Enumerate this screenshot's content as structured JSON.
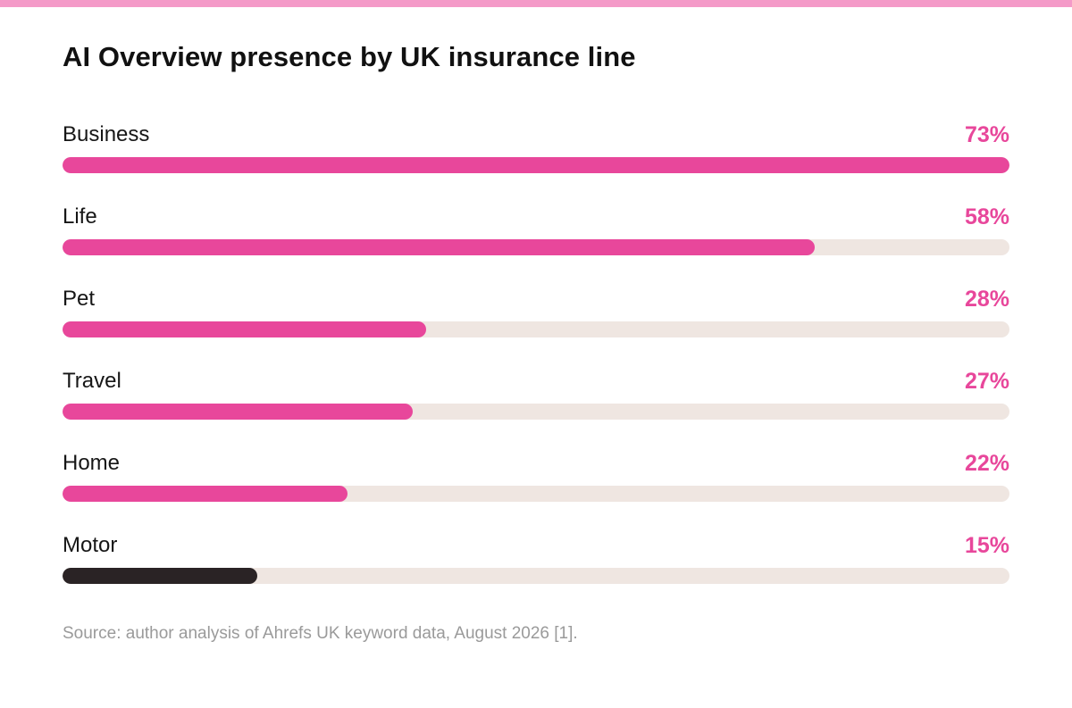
{
  "colors": {
    "top_stripe": "#f49ac8",
    "accent": "#e8479b",
    "highlight_bar": "#2a2325",
    "track": "#efe6e1",
    "title_text": "#111111",
    "label_text": "#161616",
    "source_text": "#9a9a9a"
  },
  "chart_data": {
    "type": "bar",
    "orientation": "horizontal",
    "title": "AI Overview presence by UK insurance line",
    "categories": [
      "Business",
      "Life",
      "Pet",
      "Travel",
      "Home",
      "Motor"
    ],
    "values": [
      73,
      58,
      28,
      27,
      22,
      15
    ],
    "value_labels": [
      "73%",
      "58%",
      "28%",
      "27%",
      "22%",
      "15%"
    ],
    "scale_max": 73,
    "unit": "%",
    "bar_colors": [
      "#e8479b",
      "#e8479b",
      "#e8479b",
      "#e8479b",
      "#e8479b",
      "#2a2325"
    ],
    "value_label_colors": [
      "#e8479b",
      "#e8479b",
      "#e8479b",
      "#e8479b",
      "#e8479b",
      "#e8479b"
    ],
    "grid": false,
    "legend": "none",
    "source": "Source: author analysis of Ahrefs UK keyword data, August 2026 [1]."
  }
}
